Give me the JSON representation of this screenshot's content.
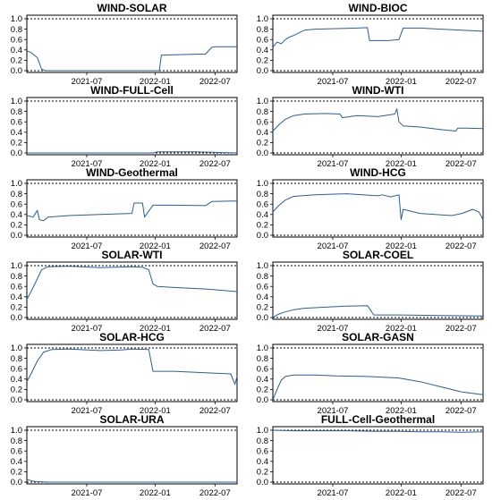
{
  "chart_data": [
    {
      "type": "line",
      "title": "WIND-SOLAR",
      "ylim": [
        0,
        1
      ],
      "yticks": [
        "0.0",
        "0.2",
        "0.4",
        "0.6",
        "0.8",
        "1.0"
      ],
      "xticks": [
        "2021-07",
        "2022-01",
        "2022-07"
      ],
      "x": [
        0,
        0.02,
        0.05,
        0.07,
        0.09,
        0.12,
        0.15,
        0.3,
        0.45,
        0.6,
        0.63,
        0.64,
        0.74,
        0.85,
        0.88,
        0.9,
        0.95,
        1.0
      ],
      "values": [
        0.38,
        0.35,
        0.25,
        0.03,
        0.0,
        0.0,
        0.0,
        0.0,
        0.0,
        0.0,
        0.0,
        0.3,
        0.31,
        0.32,
        0.45,
        0.46,
        0.46,
        0.46
      ]
    },
    {
      "type": "line",
      "title": "WIND-BIOC",
      "ylim": [
        0,
        1
      ],
      "yticks": [
        "0.0",
        "0.2",
        "0.4",
        "0.6",
        "0.8",
        "1.0"
      ],
      "xticks": [
        "2021-07",
        "2022-01",
        "2022-07"
      ],
      "x": [
        0,
        0.02,
        0.04,
        0.06,
        0.08,
        0.1,
        0.12,
        0.15,
        0.2,
        0.3,
        0.4,
        0.45,
        0.46,
        0.5,
        0.55,
        0.6,
        0.62,
        0.7,
        0.8,
        0.9,
        1.0
      ],
      "values": [
        0.45,
        0.55,
        0.52,
        0.6,
        0.65,
        0.68,
        0.72,
        0.78,
        0.8,
        0.81,
        0.82,
        0.83,
        0.58,
        0.58,
        0.58,
        0.6,
        0.82,
        0.82,
        0.8,
        0.78,
        0.76
      ]
    },
    {
      "type": "line",
      "title": "WIND-FULL-Cell",
      "ylim": [
        0,
        1
      ],
      "yticks": [
        "0.0",
        "0.2",
        "0.4",
        "0.6",
        "0.8",
        "1.0"
      ],
      "xticks": [
        "2021-07",
        "2022-01",
        "2022-07"
      ],
      "x": [
        0,
        0.2,
        0.4,
        0.6,
        0.62,
        0.8,
        0.9,
        1.0
      ],
      "values": [
        0.0,
        0.0,
        0.0,
        0.0,
        0.02,
        0.02,
        0.01,
        0.0
      ]
    },
    {
      "type": "line",
      "title": "WIND-WTI",
      "ylim": [
        0,
        1
      ],
      "yticks": [
        "0.0",
        "0.2",
        "0.4",
        "0.6",
        "0.8",
        "1.0"
      ],
      "xticks": [
        "2021-07",
        "2022-01",
        "2022-07"
      ],
      "x": [
        0,
        0.03,
        0.06,
        0.1,
        0.15,
        0.25,
        0.32,
        0.33,
        0.4,
        0.5,
        0.58,
        0.59,
        0.6,
        0.62,
        0.7,
        0.8,
        0.87,
        0.88,
        0.92,
        1.0
      ],
      "values": [
        0.42,
        0.55,
        0.65,
        0.72,
        0.75,
        0.76,
        0.75,
        0.68,
        0.72,
        0.7,
        0.75,
        0.85,
        0.6,
        0.52,
        0.5,
        0.45,
        0.42,
        0.48,
        0.48,
        0.47
      ]
    },
    {
      "type": "line",
      "title": "WIND-Geothermal",
      "ylim": [
        0,
        1
      ],
      "yticks": [
        "0.0",
        "0.2",
        "0.4",
        "0.6",
        "0.8",
        "1.0"
      ],
      "xticks": [
        "2021-07",
        "2022-01",
        "2022-07"
      ],
      "x": [
        0,
        0.03,
        0.05,
        0.06,
        0.08,
        0.1,
        0.2,
        0.35,
        0.5,
        0.51,
        0.55,
        0.56,
        0.6,
        0.7,
        0.85,
        0.88,
        1.0
      ],
      "values": [
        0.38,
        0.35,
        0.48,
        0.3,
        0.28,
        0.35,
        0.38,
        0.4,
        0.42,
        0.62,
        0.62,
        0.35,
        0.58,
        0.58,
        0.57,
        0.65,
        0.66
      ]
    },
    {
      "type": "line",
      "title": "WIND-HCG",
      "ylim": [
        0,
        1
      ],
      "yticks": [
        "0.0",
        "0.2",
        "0.4",
        "0.6",
        "0.8",
        "1.0"
      ],
      "xticks": [
        "2021-07",
        "2022-01",
        "2022-07"
      ],
      "x": [
        0,
        0.03,
        0.06,
        0.1,
        0.2,
        0.35,
        0.5,
        0.52,
        0.56,
        0.6,
        0.61,
        0.62,
        0.7,
        0.85,
        0.9,
        0.95,
        0.98,
        1.0
      ],
      "values": [
        0.45,
        0.58,
        0.68,
        0.75,
        0.78,
        0.8,
        0.76,
        0.78,
        0.74,
        0.78,
        0.3,
        0.5,
        0.42,
        0.38,
        0.42,
        0.5,
        0.45,
        0.3
      ]
    },
    {
      "type": "line",
      "title": "SOLAR-WTI",
      "ylim": [
        0,
        1
      ],
      "yticks": [
        "0.0",
        "0.2",
        "0.4",
        "0.6",
        "0.8",
        "1.0"
      ],
      "xticks": [
        "2021-07",
        "2022-01",
        "2022-07"
      ],
      "x": [
        0,
        0.02,
        0.05,
        0.07,
        0.1,
        0.2,
        0.35,
        0.5,
        0.55,
        0.58,
        0.6,
        0.62,
        0.7,
        0.85,
        1.0
      ],
      "values": [
        0.35,
        0.5,
        0.75,
        0.92,
        0.98,
        0.99,
        0.96,
        0.98,
        0.97,
        0.92,
        0.65,
        0.6,
        0.58,
        0.55,
        0.5
      ]
    },
    {
      "type": "line",
      "title": "SOLAR-COEL",
      "ylim": [
        0,
        1
      ],
      "yticks": [
        "0.0",
        "0.2",
        "0.4",
        "0.6",
        "0.8",
        "1.0"
      ],
      "xticks": [
        "2021-07",
        "2022-01",
        "2022-07"
      ],
      "x": [
        0,
        0.02,
        0.05,
        0.1,
        0.15,
        0.25,
        0.35,
        0.45,
        0.48,
        0.5,
        0.6,
        0.8,
        1.0
      ],
      "values": [
        0.0,
        0.05,
        0.1,
        0.15,
        0.18,
        0.2,
        0.22,
        0.23,
        0.05,
        0.05,
        0.05,
        0.04,
        0.03
      ]
    },
    {
      "type": "line",
      "title": "SOLAR-HCG",
      "ylim": [
        0,
        1
      ],
      "yticks": [
        "0.0",
        "0.2",
        "0.4",
        "0.6",
        "0.8",
        "1.0"
      ],
      "xticks": [
        "2021-07",
        "2022-01",
        "2022-07"
      ],
      "x": [
        0,
        0.02,
        0.05,
        0.08,
        0.12,
        0.2,
        0.35,
        0.45,
        0.5,
        0.58,
        0.6,
        0.7,
        0.85,
        0.97,
        0.99,
        1.0
      ],
      "values": [
        0.35,
        0.5,
        0.75,
        0.92,
        0.97,
        0.98,
        0.95,
        0.96,
        0.98,
        0.97,
        0.55,
        0.55,
        0.52,
        0.5,
        0.3,
        0.45
      ]
    },
    {
      "type": "line",
      "title": "SOLAR-GASN",
      "ylim": [
        0,
        1
      ],
      "yticks": [
        "0.0",
        "0.2",
        "0.4",
        "0.6",
        "0.8",
        "1.0"
      ],
      "xticks": [
        "2021-07",
        "2022-01",
        "2022-07"
      ],
      "x": [
        0,
        0.02,
        0.04,
        0.06,
        0.1,
        0.2,
        0.3,
        0.45,
        0.6,
        0.7,
        0.8,
        0.85,
        0.9,
        1.0
      ],
      "values": [
        0.0,
        0.2,
        0.38,
        0.45,
        0.48,
        0.48,
        0.46,
        0.45,
        0.42,
        0.35,
        0.25,
        0.2,
        0.15,
        0.1
      ]
    },
    {
      "type": "line",
      "title": "SOLAR-URA",
      "ylim": [
        0,
        1
      ],
      "yticks": [
        "0.0",
        "0.2",
        "0.4",
        "0.6",
        "0.8",
        "1.0"
      ],
      "xticks": [
        "2021-07",
        "2022-01",
        "2022-07"
      ],
      "x": [
        0,
        0.02,
        0.04,
        0.1,
        0.3,
        0.5,
        0.7,
        0.9,
        1.0
      ],
      "values": [
        0.05,
        0.03,
        0.01,
        0.0,
        0.0,
        0.0,
        0.0,
        0.0,
        0.0
      ]
    },
    {
      "type": "line",
      "title": "FULL-Cell-Geothermal",
      "ylim": [
        0,
        1
      ],
      "yticks": [
        "0.0",
        "0.2",
        "0.4",
        "0.6",
        "0.8",
        "1.0"
      ],
      "xticks": [
        "2021-07",
        "2022-01",
        "2022-07"
      ],
      "x": [
        0,
        0.1,
        0.2,
        0.35,
        0.5,
        0.6,
        0.7,
        0.8,
        0.9,
        1.0
      ],
      "values": [
        1.0,
        0.99,
        0.99,
        0.99,
        0.98,
        0.98,
        0.97,
        0.97,
        0.96,
        0.97
      ]
    }
  ]
}
